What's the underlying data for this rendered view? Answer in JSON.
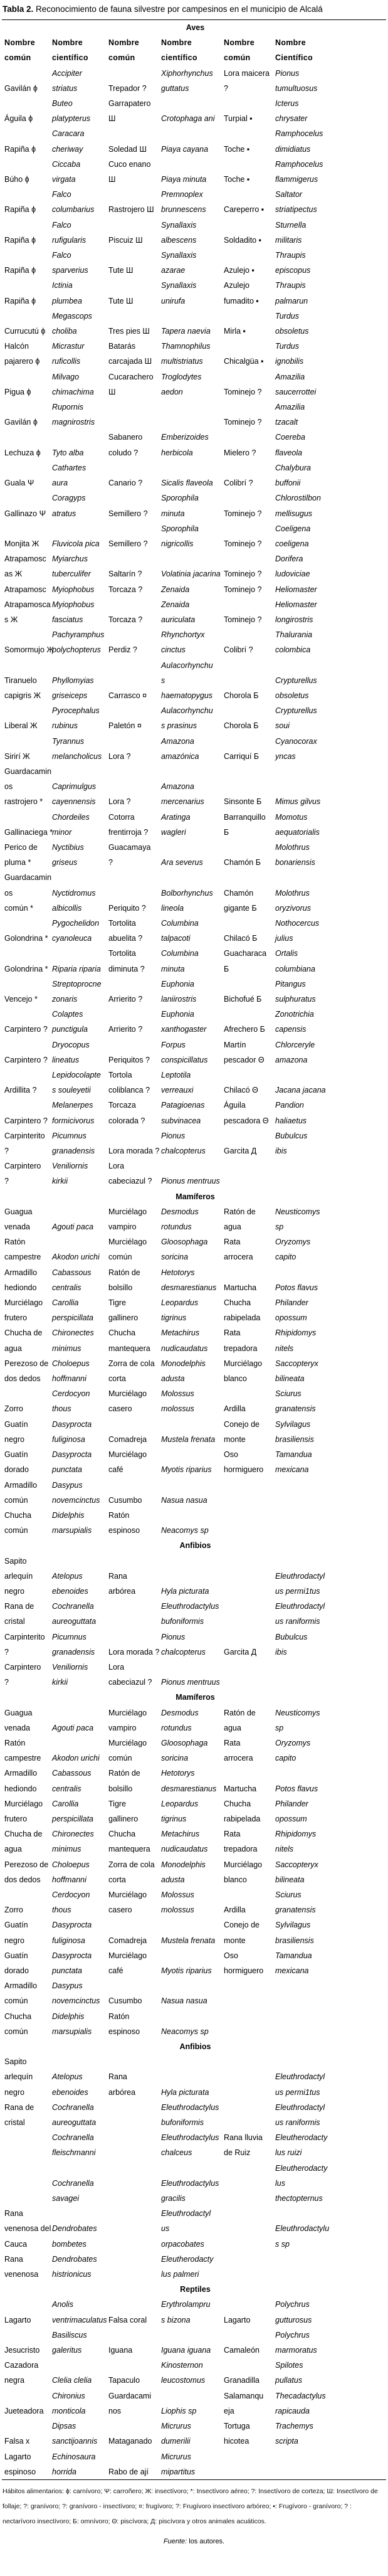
{
  "title": {
    "label": "Tabla 2.",
    "text": "Reconocimiento de fauna silvestre por campesinos en el municipio de Alcalá"
  },
  "headers": [
    "Nombre\ncomún",
    "Nombre\ncientífico",
    "Nombre\ncomún",
    "Nombre\ncientífico",
    "Nombre\ncomún",
    "Nombre\nCientífico"
  ],
  "sections": [
    {
      "name": "Aves",
      "show_headers": true,
      "rows": [
        [
          "\nGavilán ɸ",
          "Accipiter\nstriatus",
          "\nTrepador ?",
          "Xiphorhynchus\nguttatus",
          "Lora maicera\n?",
          "Pionus\ntumultuosus"
        ],
        [
          "\nÁguila ɸ",
          "Buteo\nplatypterus",
          "Garrapatero\nШ",
          "\nCrotophaga ani",
          "\nTurpial ▪",
          "Icterus\nchrysater"
        ],
        [
          "\nRapiña ɸ",
          "Caracara\ncheriway",
          "\nSoledad Ш",
          "\nPiaya cayana",
          "\nToche ▪",
          "Ramphocelus\ndimidiatus"
        ],
        [
          "\nBúho ɸ",
          "Ciccaba\nvirgata",
          "Cuco enano\nШ",
          "\nPiaya minuta",
          "\nToche ▪",
          "Ramphocelus\nflammigerus"
        ],
        [
          "\nRapiña ɸ",
          "Falco\ncolumbarius",
          "\nRastrojero Ш",
          "Premnoplex\nbrunnescens",
          "\nCareperro ▪",
          "Saltator\nstriatipectus"
        ],
        [
          "\nRapiña ɸ",
          "Falco\nrufigularis",
          "\nPiscuiz Ш",
          "Synallaxis\nalbescens",
          "\nSoldadito ▪",
          "Sturnella\nmilitaris"
        ],
        [
          "\nRapiña ɸ",
          "Falco\nsparverius",
          "\nTute Ш",
          "Synallaxis\nazarae",
          "\nAzulejo ▪",
          "Thraupis\nepiscopus"
        ],
        [
          "\nRapiña ɸ",
          "Ictinia\nplumbea",
          "\nTute Ш",
          "Synallaxis\nunirufa",
          "Azulejo\nfumadito ▪",
          "Thraupis\npalmarun"
        ],
        [
          "\nCurrucutú ɸ",
          "Megascops\ncholiba",
          "\nTres pies Ш",
          "\nTapera naevia",
          "\nMirla ▪",
          "Turdus\nobsoletus"
        ],
        [
          "Halcón\npajarero ɸ",
          "Micrastur\nruficollis",
          "Batarás\ncarcajada Ш",
          "Thamnophilus\nmultistriatus",
          "\nChicalgüa ▪",
          "Turdus\nignobilis"
        ],
        [
          "\nPigua ɸ",
          "Milvago\nchimachima",
          "Cucarachero\nШ",
          "Troglodytes\naedon",
          "\nTominejo ?",
          "Amazilia\nsaucerrottei"
        ],
        [
          "\nGavilán ɸ",
          "Rupornis\nmagnirostris",
          "",
          "",
          "\nTominejo ?",
          "Amazilia\ntzacalt"
        ],
        [
          "\nLechuza ɸ",
          "\nTyto alba",
          "Sabanero\ncoludo ?",
          "Emberizoides\nherbicola",
          "\nMielero ?",
          "Coereba\nflaveola"
        ],
        [
          "\nGuala Ψ",
          "Cathartes\naura",
          "\nCanario ?",
          "\nSicalis flaveola",
          "\nColibrí ?",
          "Chalybura\nbuffonii"
        ],
        [
          "\nGallinazo Ψ",
          "Coragyps\natratus",
          "\nSemillero ?",
          "Sporophila\nminuta",
          "\nTominejo ?",
          "Chlorostilbon\nmellisugus"
        ],
        [
          "\nMonjita Ж",
          "\nFluvicola pica",
          "\nSemillero ?",
          "Sporophila\nnigricollis",
          "\nTominejo ?",
          "Coeligena\ncoeligena"
        ],
        [
          "Atrapamosc\nas Ж",
          "Myiarchus\ntuberculifer",
          "\nSaltarín ?",
          "\nVolatinia jacarina",
          "\nTominejo ?",
          "Dorifera\nludoviciae"
        ],
        [
          "Atrapamosc",
          "Myiophobus",
          "Torcaza ?",
          "Zenaida",
          "Tominejo ?",
          "Heliomaster"
        ],
        [
          "Atrapamosca\ns Ж",
          "Myiophobus\nfasciatus",
          "\nTorcaza ?",
          "Zenaida\nauriculata",
          "\nTominejo ?",
          "Heliomaster\nlongirostris"
        ],
        [
          "\nSomormujo Ж",
          "Pachyramphus\npolychopterus",
          "\nPerdiz ?",
          "Rhynchortyx\ncinctus",
          "\nColibrí ?",
          "Thalurania\ncolombica"
        ],
        [
          "\nTiranuelo\ncapigris Ж",
          "\nPhyllomyias\ngriseiceps",
          "\n\nCarrasco ¤",
          "Aulacorhynchu\ns\nhaematopygus",
          "\n\nChorola Б",
          "\nCrypturellus\nobsoletus"
        ],
        [
          "\nLiberal Ж",
          "Pyrocephalus\nrubinus",
          "\nPaletón ¤",
          "Aulacorhynchu\ns prasinus",
          "\nChorola Б",
          "Crypturellus\nsoui"
        ],
        [
          "\nSirirí Ж",
          "Tyrannus\nmelancholicus",
          "\nLora ?",
          "Amazona\namazónica",
          "\nCarriquí Б",
          "Cyanocorax\nyncas"
        ],
        [
          "Guardacamin\nos\nrastrojero *",
          "\nCaprimulgus\ncayennensis",
          "\n\nLora ?",
          "\nAmazona\nmercenarius",
          "\n\nSinsonte Б",
          "\n\nMimus gilvus"
        ],
        [
          "\nGallinaciega *",
          "Chordeiles\nminor",
          "Cotorra\nfrentirroja ?",
          "Aratinga\nwagleri",
          "Barranquillo\nБ",
          "Momotus\naequatorialis"
        ],
        [
          "Perico de\npluma *",
          "Nyctibius\ngriseus",
          "Guacamaya\n?",
          "\nAra severus",
          "\nChamón Б",
          "Molothrus\nbonariensis"
        ],
        [
          "Guardacamin\nos\ncomún *",
          "\nNyctidromus\nalbicollis",
          "\n\nPeriquito ?",
          "\nBolborhynchus\nlineola",
          "\nChamón\ngigante Б",
          "\nMolothrus\noryzivorus"
        ],
        [
          "\nGolondrina *",
          "Pygochelidon\ncyanoleuca",
          "Tortolita\nabuelita ?",
          "Columbina\ntalpacoti",
          "\nChilacó Б",
          "Nothocercus\njulius"
        ],
        [
          "\nGolondrina *",
          "\nRiparia riparia",
          "Tortolita\ndiminuta ?",
          "Columbina\nminuta",
          "Guacharaca\nБ",
          "Ortalis\ncolumbiana"
        ],
        [
          "\nVencejo *",
          "Streptoprocne\nzonaris",
          "\nArrierito ?",
          "Euphonia\nlaniirostris",
          "\nBichofué Б",
          "Pitangus\nsulphuratus"
        ],
        [
          "\nCarpintero ?",
          "Colaptes\npunctigula",
          "\nArrierito ?",
          "Euphonia\nxanthogaster",
          "\nAfrechero Б",
          "Zonotrichia\ncapensis"
        ],
        [
          "\nCarpintero ?",
          "Dryocopus\nlineatus",
          "\nPeriquitos ?",
          "Forpus\nconspicillatus",
          "Martín\npescador Θ",
          "Chlorceryle\namazona"
        ],
        [
          "\nArdillita ?",
          "Lepidocolapte\ns souleyetii",
          "Tortola\ncoliblanca ?",
          "Leptotila\nverreauxi",
          "\nChilacó Θ",
          "\nJacana jacana"
        ],
        [
          "\nCarpintero ?",
          "Melanerpes\nformicivorus",
          "Torcaza\ncolorada ?",
          "Patagioenas\nsubvinacea",
          "Águila\npescadora Θ",
          "Pandion\nhaliaetus"
        ],
        [
          "Carpinterito\n?",
          "Picumnus\ngranadensis",
          "\nLora morada ?",
          "Pionus\nchalcopterus",
          "\nGarcita Д",
          "Bubulcus\nibis"
        ],
        [
          "Carpintero\n?",
          "Veniliornis\nkirkii",
          "Lora\ncabeciazul ?",
          "\nPionus mentruus",
          "",
          ""
        ]
      ]
    },
    {
      "name": "Mamíferos",
      "rows": [
        [
          "Guagua\nvenada",
          "\nAgouti paca",
          "Murciélago\nvampiro",
          "Desmodus\nrotundus",
          "Ratón de\nagua",
          "Neusticomys\nsp"
        ],
        [
          "Ratón\ncampestre",
          "\nAkodon urichi",
          "Murciélago\ncomún",
          "Gloosophaga\nsoricina",
          "Rata\narrocera",
          "Oryzomys\ncapito"
        ],
        [
          "Armadillo\nhediondo",
          "Cabassous\ncentralis",
          "Ratón de\nbolsillo",
          "Hetotorys\ndesmarestianus",
          "\nMartucha",
          "\nPotos flavus"
        ],
        [
          "Murciélago\nfrutero",
          "Carollia\nperspicillata",
          "Tigre\ngallinero",
          "Leopardus\ntigrinus",
          "Chucha\nrabipelada",
          "Philander\nopossum"
        ],
        [
          "Chucha de\nagua",
          "Chironectes\nminimus",
          "Chucha\nmantequera",
          "Metachirus\nnudicaudatus",
          "Rata\ntrepadora",
          "Rhipidomys\nnitels"
        ],
        [
          "Perezoso de\ndos dedos",
          "Choloepus\nhoffmanni",
          "Zorra de cola\ncorta",
          "Monodelphis\nadusta",
          "Murciélago\nblanco",
          "Saccopteryx\nbilineata"
        ],
        [
          "\nZorro",
          "Cerdocyon\nthous",
          "Murciélago\ncasero",
          "Molossus\nmolossus",
          "\nArdilla",
          "Sciurus\ngranatensis"
        ],
        [
          "Guatín\nnegro",
          "Dasyprocta\nfuliginosa",
          "\nComadreja",
          "\nMustela frenata",
          "Conejo de\nmonte",
          "Sylvilagus\nbrasiliensis"
        ],
        [
          "Guatín\ndorado",
          "Dasyprocta\npunctata",
          "Murciélago\ncafé",
          "\nMyotis riparius",
          "Oso\nhormiguero",
          "Tamandua\nmexicana"
        ],
        [
          "Armadillo\ncomún",
          "Dasypus\nnovemcinctus",
          "\nCusumbo",
          "\nNasua nasua",
          "",
          ""
        ],
        [
          "Chucha\ncomún",
          "Didelphis\nmarsupialis",
          "Ratón\nespinoso",
          "\nNeacomys sp",
          "",
          ""
        ]
      ]
    },
    {
      "name": "Anfibios",
      "rows": [
        [
          "Sapito\narlequín\nnegro",
          "\nAtelopus\nebenoides",
          "\nRana\narbórea",
          "\n\nHyla picturata",
          "",
          "\nEleuthrodactyl\nus permi1tus"
        ],
        [
          "Rana de\ncristal",
          "Cochranella\naureoguttata",
          "",
          "Eleuthrodactylus\nbufoniformis",
          "",
          "Eleuthrodactyl\nus raniformis"
        ],
        [
          "Carpinterito\n?",
          "Picumnus\ngranadensis",
          "\nLora morada ?",
          "Pionus\nchalcopterus",
          "\nGarcita Д",
          "Bubulcus\nibis"
        ],
        [
          "Carpintero\n?",
          "Veniliornis\nkirkii",
          "Lora\ncabeciazul ?",
          "\nPionus mentruus",
          "",
          ""
        ]
      ]
    },
    {
      "name": "Mamíferos",
      "rows": [
        [
          "Guagua\nvenada",
          "\nAgouti paca",
          "Murciélago\nvampiro",
          "Desmodus\nrotundus",
          "Ratón de\nagua",
          "Neusticomys\nsp"
        ],
        [
          "Ratón\ncampestre",
          "\nAkodon urichi",
          "Murciélago\ncomún",
          "Gloosophaga\nsoricina",
          "Rata\narrocera",
          "Oryzomys\ncapito"
        ],
        [
          "Armadillo\nhediondo",
          "Cabassous\ncentralis",
          "Ratón de\nbolsillo",
          "Hetotorys\ndesmarestianus",
          "\nMartucha",
          "\nPotos flavus"
        ],
        [
          "Murciélago\nfrutero",
          "Carollia\nperspicillata",
          "Tigre\ngallinero",
          "Leopardus\ntigrinus",
          "Chucha\nrabipelada",
          "Philander\nopossum"
        ],
        [
          "Chucha de\nagua",
          "Chironectes\nminimus",
          "Chucha\nmantequera",
          "Metachirus\nnudicaudatus",
          "Rata\ntrepadora",
          "Rhipidomys\nnitels"
        ],
        [
          "Perezoso de\ndos dedos",
          "Choloepus\nhoffmanni",
          "Zorra de cola\ncorta",
          "Monodelphis\nadusta",
          "Murciélago\nblanco",
          "Saccopteryx\nbilineata"
        ],
        [
          "\nZorro",
          "Cerdocyon\nthous",
          "Murciélago\ncasero",
          "Molossus\nmolossus",
          "\nArdilla",
          "Sciurus\ngranatensis"
        ],
        [
          "Guatín\nnegro",
          "Dasyprocta\nfuliginosa",
          "\nComadreja",
          "\nMustela frenata",
          "Conejo de\nmonte",
          "Sylvilagus\nbrasiliensis"
        ],
        [
          "Guatín\ndorado",
          "Dasyprocta\npunctata",
          "Murciélago\ncafé",
          "\nMyotis riparius",
          "Oso\nhormiguero",
          "Tamandua\nmexicana"
        ],
        [
          "Armadillo\ncomún",
          "Dasypus\nnovemcinctus",
          "\nCusumbo",
          "\nNasua nasua",
          "",
          ""
        ],
        [
          "Chucha\ncomún",
          "Didelphis\nmarsupialis",
          "Ratón\nespinoso",
          "\nNeacomys sp",
          "",
          ""
        ]
      ]
    },
    {
      "name": "Anfibios",
      "rows": [
        [
          "Sapito\narlequín\nnegro",
          "\nAtelopus\nebenoides",
          "\nRana\narbórea",
          "\n\nHyla picturata",
          "",
          "\nEleuthrodactyl\nus permi1tus"
        ],
        [
          "Rana de\ncristal",
          "Cochranella\naureoguttata",
          "",
          "Eleuthrodactylus\nbufoniformis",
          "",
          "Eleuthrodactyl\nus raniformis"
        ],
        [
          "",
          "Cochranella\nfleischmanni",
          "",
          "Eleuthrodactylus\nchalceus",
          "Rana lluvia\nde Ruiz",
          "Eleutherodacty\nlus ruizi"
        ],
        [
          "",
          "\nCochranella\nsavagei\n",
          "",
          "\nEleuthrodactylus\ngracilis",
          "",
          "Eleutherodacty\nlus\nthectopternus"
        ],
        [
          "Rana\nvenenosa del\nCauca",
          "\nDendrobates\nbombetes",
          "",
          "Eleuthrodactyl\nus\norpacobates",
          "",
          "\nEleuthrodactylu\ns sp"
        ],
        [
          "Rana\nvenenosa",
          "Dendrobates\nhistrionicus",
          "",
          "Eleutherodacty\nlus palmeri",
          "",
          ""
        ]
      ]
    },
    {
      "name": "Reptiles",
      "rows": [
        [
          "\nLagarto",
          "Anolis\nventrimaculatus",
          "\nFalsa coral",
          "Erythrolampru\ns bizona",
          "\nLagarto",
          "Polychrus\ngutturosus"
        ],
        [
          "\nJesucristo",
          "Basiliscus\ngaleritus",
          "\nIguana",
          "\nIguana iguana",
          "\nCamaleón",
          "Polychrus\nmarmoratus"
        ],
        [
          "Cazadora\nnegra",
          "\nClelia clelia",
          "\nTapaculo",
          "Kinosternon\nleucostomus",
          "\nGranadilla",
          "Spilotes\npullatus"
        ],
        [
          "\nJueteadora",
          "Chironius\nmonticola",
          "Guardacami\nnos",
          "\nLiophis sp",
          "Salamanqu\neja",
          "Thecadactylus\nrapicauda"
        ],
        [
          "\nFalsa x",
          "Dipsas\nsanctijoannis",
          "\nMataganado",
          "Micrurus\ndumerilii",
          "Tortuga\nhicotea",
          "Trachemys\nscripta"
        ],
        [
          "Lagarto\nespinoso",
          "Echinosaura\nhorrida",
          "\nRabo de ají",
          "Micrurus\nmipartitus",
          "",
          ""
        ]
      ]
    }
  ],
  "notes": "Hábitos alimentarios: ɸ: carnívoro; Ψ: carroñero; Ж: insectívoro; *: Insectívoro aéreo; ?: Insectívoro de corteza; Ш: Insectívoro de follaje; ?: granívoro; ?: granívoro - insectívoro; ¤: frugívoro; ?: Frugívoro insectívoro arbóreo; ▪: Frugívoro - granívoro; ? : nectarívoro insectívoro; Б: omnívoro; Θ: piscívora; Д: piscívora y otros animales acuáticos.",
  "source": {
    "label": "Fuente:",
    "text": "los autores."
  }
}
